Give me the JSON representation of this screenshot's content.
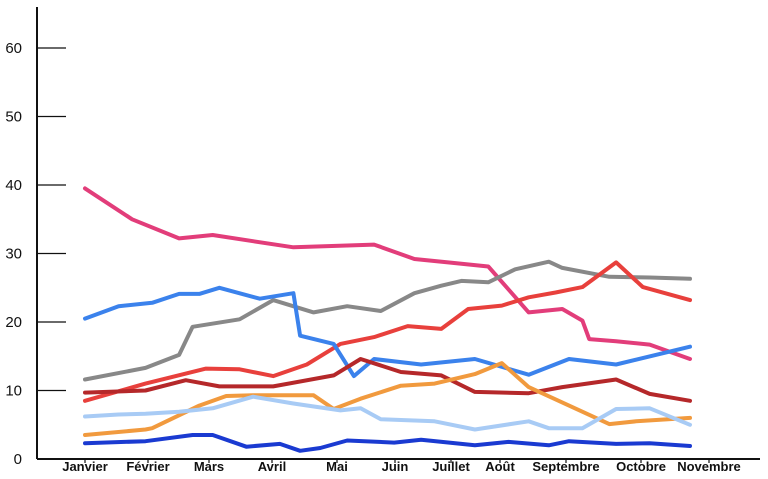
{
  "chart_data": {
    "type": "line",
    "title": "",
    "xlabel": "",
    "ylabel": "",
    "ylim": [
      0,
      63
    ],
    "yticks": [
      0,
      10,
      20,
      30,
      40,
      50,
      60
    ],
    "grid": false,
    "legend": "none",
    "categories": [
      "Janvier",
      "Février",
      "Mars",
      "Avril",
      "Mai",
      "Juin",
      "Juillet",
      "Août",
      "Septembre",
      "Octobre",
      "Novembre"
    ],
    "series": [
      {
        "color": "#e23d7a",
        "points": [
          [
            0,
            39.5
          ],
          [
            0.7,
            35
          ],
          [
            1.4,
            32.2
          ],
          [
            1.9,
            32.7
          ],
          [
            2.5,
            31.8
          ],
          [
            3.1,
            30.9
          ],
          [
            4.3,
            31.3
          ],
          [
            4.9,
            29.2
          ],
          [
            5.4,
            28.7
          ],
          [
            6.0,
            28.1
          ],
          [
            6.6,
            21.4
          ],
          [
            7.1,
            21.9
          ],
          [
            7.4,
            20.2
          ],
          [
            7.5,
            17.5
          ],
          [
            7.9,
            17.2
          ],
          [
            8.4,
            16.7
          ],
          [
            9.0,
            14.6
          ]
        ]
      },
      {
        "color": "#888888",
        "points": [
          [
            0,
            11.6
          ],
          [
            0.9,
            13.3
          ],
          [
            1.4,
            15.2
          ],
          [
            1.6,
            19.3
          ],
          [
            2.3,
            20.4
          ],
          [
            2.8,
            23.2
          ],
          [
            3.4,
            21.4
          ],
          [
            3.9,
            22.3
          ],
          [
            4.4,
            21.6
          ],
          [
            4.9,
            24.2
          ],
          [
            5.3,
            25.3
          ],
          [
            5.6,
            26.0
          ],
          [
            6.0,
            25.8
          ],
          [
            6.4,
            27.7
          ],
          [
            6.9,
            28.8
          ],
          [
            7.1,
            27.9
          ],
          [
            7.8,
            26.6
          ],
          [
            8.4,
            26.5
          ],
          [
            9.0,
            26.3
          ]
        ]
      },
      {
        "color": "#e8403c",
        "points": [
          [
            0,
            8.5
          ],
          [
            0.9,
            11.0
          ],
          [
            1.8,
            13.2
          ],
          [
            2.3,
            13.1
          ],
          [
            2.8,
            12.1
          ],
          [
            3.3,
            13.8
          ],
          [
            3.8,
            16.8
          ],
          [
            4.3,
            17.8
          ],
          [
            4.8,
            19.4
          ],
          [
            5.3,
            19.0
          ],
          [
            5.7,
            21.9
          ],
          [
            6.2,
            22.4
          ],
          [
            6.6,
            23.6
          ],
          [
            7.0,
            24.3
          ],
          [
            7.4,
            25.1
          ],
          [
            7.9,
            28.7
          ],
          [
            8.3,
            25.1
          ],
          [
            9.0,
            23.2
          ]
        ]
      },
      {
        "color": "#3b82ec",
        "points": [
          [
            0,
            20.5
          ],
          [
            0.5,
            22.3
          ],
          [
            1.0,
            22.8
          ],
          [
            1.4,
            24.1
          ],
          [
            1.7,
            24.1
          ],
          [
            2.0,
            25.0
          ],
          [
            2.6,
            23.4
          ],
          [
            3.1,
            24.2
          ],
          [
            3.2,
            18.0
          ],
          [
            3.7,
            16.8
          ],
          [
            4.0,
            12.1
          ],
          [
            4.3,
            14.6
          ],
          [
            5.0,
            13.8
          ],
          [
            5.8,
            14.6
          ],
          [
            6.6,
            12.3
          ],
          [
            7.2,
            14.6
          ],
          [
            7.9,
            13.8
          ],
          [
            9.0,
            16.4
          ]
        ]
      },
      {
        "color": "#b5282a",
        "points": [
          [
            0,
            9.7
          ],
          [
            0.9,
            10.0
          ],
          [
            1.5,
            11.5
          ],
          [
            2.0,
            10.6
          ],
          [
            2.8,
            10.6
          ],
          [
            3.7,
            12.2
          ],
          [
            4.1,
            14.6
          ],
          [
            4.7,
            12.7
          ],
          [
            5.3,
            12.2
          ],
          [
            5.8,
            9.8
          ],
          [
            6.6,
            9.6
          ],
          [
            7.1,
            10.5
          ],
          [
            7.9,
            11.6
          ],
          [
            8.4,
            9.5
          ],
          [
            9.0,
            8.5
          ]
        ]
      },
      {
        "color": "#f19a3e",
        "points": [
          [
            0,
            3.5
          ],
          [
            0.9,
            4.3
          ],
          [
            1.0,
            4.5
          ],
          [
            1.7,
            7.8
          ],
          [
            2.1,
            9.2
          ],
          [
            2.5,
            9.3
          ],
          [
            3.4,
            9.3
          ],
          [
            3.7,
            7.3
          ],
          [
            4.1,
            8.8
          ],
          [
            4.7,
            10.7
          ],
          [
            5.2,
            11.0
          ],
          [
            5.8,
            12.4
          ],
          [
            6.2,
            14.0
          ],
          [
            6.6,
            10.5
          ],
          [
            7.2,
            7.8
          ],
          [
            7.8,
            5.1
          ],
          [
            8.2,
            5.5
          ],
          [
            9.0,
            6.0
          ]
        ]
      },
      {
        "color": "#a8cbf5",
        "points": [
          [
            0,
            6.2
          ],
          [
            0.5,
            6.5
          ],
          [
            0.9,
            6.6
          ],
          [
            1.4,
            6.9
          ],
          [
            1.9,
            7.4
          ],
          [
            2.5,
            9.1
          ],
          [
            3.1,
            8.1
          ],
          [
            3.8,
            7.1
          ],
          [
            4.1,
            7.4
          ],
          [
            4.4,
            5.8
          ],
          [
            5.2,
            5.5
          ],
          [
            5.8,
            4.3
          ],
          [
            6.6,
            5.5
          ],
          [
            6.9,
            4.5
          ],
          [
            7.4,
            4.5
          ],
          [
            7.9,
            7.3
          ],
          [
            8.4,
            7.4
          ],
          [
            9.0,
            5.0
          ]
        ]
      },
      {
        "color": "#1a3ad1",
        "points": [
          [
            0,
            2.3
          ],
          [
            0.9,
            2.6
          ],
          [
            1.6,
            3.5
          ],
          [
            1.9,
            3.5
          ],
          [
            2.4,
            1.8
          ],
          [
            2.9,
            2.2
          ],
          [
            3.2,
            1.2
          ],
          [
            3.5,
            1.6
          ],
          [
            3.9,
            2.7
          ],
          [
            4.6,
            2.4
          ],
          [
            5.0,
            2.8
          ],
          [
            5.8,
            2.0
          ],
          [
            6.3,
            2.5
          ],
          [
            6.9,
            2.0
          ],
          [
            7.2,
            2.6
          ],
          [
            7.9,
            2.2
          ],
          [
            8.4,
            2.3
          ],
          [
            9.0,
            1.9
          ]
        ]
      }
    ]
  }
}
